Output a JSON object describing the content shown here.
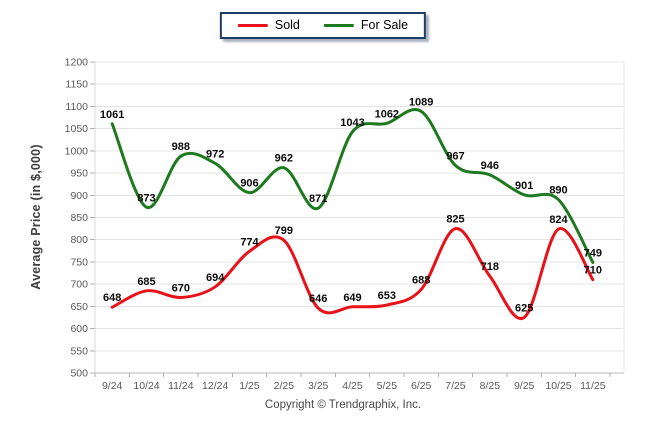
{
  "legend": {
    "items": [
      {
        "label": "Sold",
        "color": "#e8131a"
      },
      {
        "label": "For Sale",
        "color": "#1e7a1e"
      }
    ]
  },
  "footer": {
    "copyright": "Copyright © Trendgraphix, Inc."
  },
  "chart_data": {
    "type": "line",
    "title": "",
    "xlabel": "",
    "ylabel": "Average Price (in $,000)",
    "categories": [
      "9/24",
      "10/24",
      "11/24",
      "12/24",
      "1/25",
      "2/25",
      "3/25",
      "4/25",
      "5/25",
      "6/25",
      "7/25",
      "8/25",
      "9/25",
      "10/25",
      "11/25"
    ],
    "series": [
      {
        "name": "Sold",
        "color": "#e8131a",
        "values": [
          648,
          685,
          670,
          694,
          774,
          799,
          646,
          649,
          653,
          688,
          825,
          718,
          625,
          824,
          710
        ]
      },
      {
        "name": "For Sale",
        "color": "#1e7a1e",
        "values": [
          1061,
          873,
          988,
          972,
          906,
          962,
          871,
          1043,
          1062,
          1089,
          967,
          946,
          901,
          890,
          749
        ]
      }
    ],
    "ylim": [
      500,
      1200
    ],
    "ytick_step": 50,
    "grid": true,
    "smooth": true,
    "data_labels": true,
    "legend_position": "top-center",
    "styles": {
      "grid_color": "#e4e4e4",
      "axis_color": "#b7b7b7",
      "tick_color": "#b0b0b0",
      "tick_label_color": "#595959",
      "data_label_color": "#0a0a0a"
    }
  }
}
